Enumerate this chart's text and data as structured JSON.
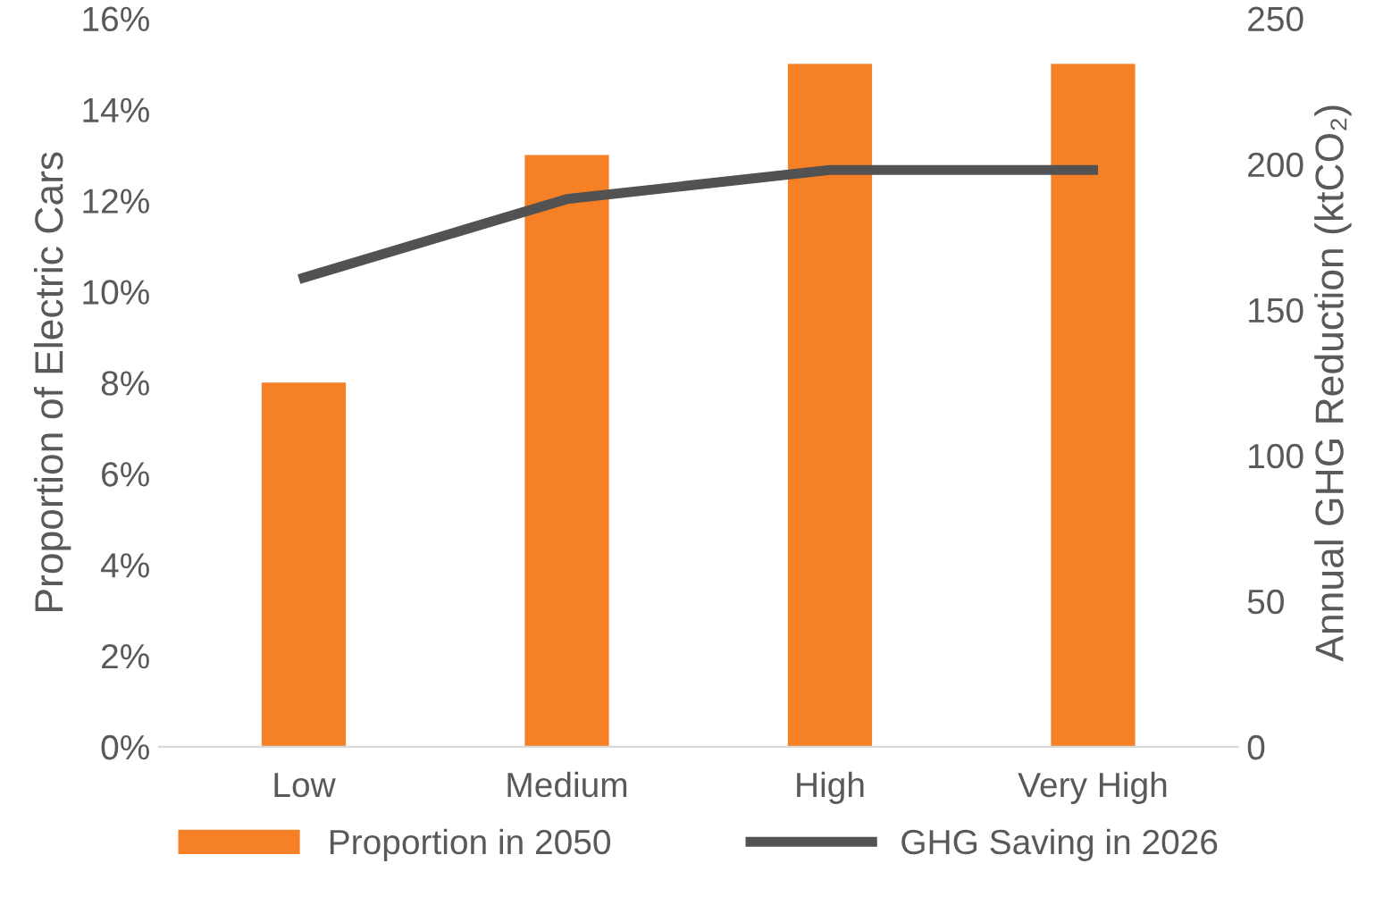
{
  "chart_data": {
    "type": "bar",
    "ylabel": "Proportion of Electric Cars",
    "y2label": "Annual GHG Reduction (ktCO₂)",
    "categories": [
      "Low",
      "Medium",
      "High",
      "Very High"
    ],
    "series": [
      {
        "name": "Proportion in 2050",
        "color": "#f58025",
        "values": [
          8,
          13,
          15,
          15
        ]
      },
      {
        "name": "GHG Saving in 2026",
        "type": "line",
        "axis": "y2",
        "color": "#525252",
        "values": [
          161,
          188,
          198,
          198
        ],
        "marker": "none",
        "line_style": "solid"
      }
    ],
    "ylim": [
      0,
      16
    ],
    "yticks": [
      {
        "value": 0,
        "label": "0%"
      },
      {
        "value": 2,
        "label": "2%"
      },
      {
        "value": 4,
        "label": "4%"
      },
      {
        "value": 6,
        "label": "6%"
      },
      {
        "value": 8,
        "label": "8%"
      },
      {
        "value": 10,
        "label": "10%"
      },
      {
        "value": 12,
        "label": "12%"
      },
      {
        "value": 14,
        "label": "14%"
      },
      {
        "value": 16,
        "label": "16%"
      }
    ],
    "y2lim": [
      0,
      250
    ],
    "y2ticks": [
      0,
      50,
      100,
      150,
      200,
      250
    ],
    "grid": false,
    "legend": "bottom"
  }
}
